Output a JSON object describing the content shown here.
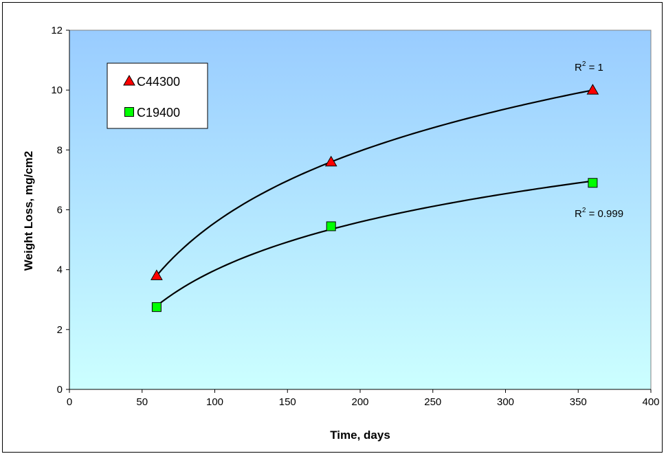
{
  "chart_data": {
    "type": "scatter",
    "xlabel": "Time, days",
    "ylabel": "Weight Loss, mg/cm2",
    "xlim": [
      0,
      400
    ],
    "ylim": [
      0,
      12
    ],
    "xticks": [
      "0",
      "50",
      "100",
      "150",
      "200",
      "250",
      "300",
      "350",
      "400"
    ],
    "yticks": [
      "0",
      "2",
      "4",
      "6",
      "8",
      "10",
      "12"
    ],
    "grid": false,
    "legend_position": "top-left",
    "background": "vertical gradient light blue to pale cyan",
    "series": [
      {
        "name": "C44300",
        "marker": "triangle",
        "color": "#ff0000",
        "x": [
          60,
          180,
          360
        ],
        "y": [
          3.8,
          7.6,
          10.0
        ],
        "trendline": "logarithmic",
        "r2_base": "R",
        "r2_exp": "2",
        "r2_rest": " = 1"
      },
      {
        "name": "C19400",
        "marker": "square",
        "color": "#00ff00",
        "x": [
          60,
          180,
          360
        ],
        "y": [
          2.75,
          5.45,
          6.9
        ],
        "trendline": "logarithmic",
        "r2_base": "R",
        "r2_exp": "2",
        "r2_rest": " = 0.999"
      }
    ],
    "colors": {
      "plot_top": "#99ccff",
      "plot_bottom": "#ccffff",
      "trendline": "#000000"
    }
  }
}
